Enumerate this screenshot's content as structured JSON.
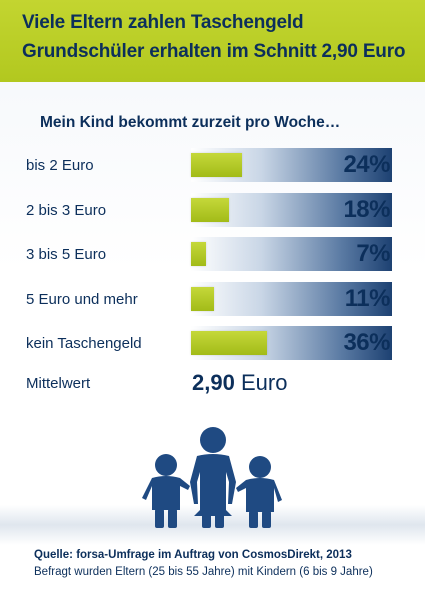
{
  "header": {
    "title_line1": "Viele Eltern zahlen Taschengeld",
    "title_line2": "Grundschüler erhalten im Schnitt 2,90 Euro"
  },
  "subtitle": "Mein Kind bekommt zurzeit pro Woche…",
  "chart_data": {
    "type": "bar",
    "orientation": "horizontal",
    "categories": [
      "bis 2 Euro",
      "2 bis 3 Euro",
      "3 bis 5 Euro",
      "5 Euro und mehr",
      "kein Taschengeld"
    ],
    "values": [
      24,
      18,
      7,
      11,
      36
    ],
    "value_labels": [
      "24%",
      "18%",
      "7%",
      "11%",
      "36%"
    ],
    "unit": "%",
    "xlim": [
      0,
      100
    ],
    "grid": false,
    "colors": {
      "bar": "#b2c81f",
      "track_dark": "#1d4172",
      "text": "#0c2f5b"
    }
  },
  "mean": {
    "label": "Mittelwert",
    "value": "2,90",
    "unit": "Euro"
  },
  "illustration": {
    "icon": "family-silhouette-icon",
    "color": "#1f4a82"
  },
  "source": {
    "prefix": "Quelle:",
    "text": "forsa-Umfrage im Auftrag von CosmosDirekt, 2013",
    "note": "Befragt wurden Eltern (25 bis 55 Jahre) mit Kindern (6 bis 9 Jahre)"
  }
}
